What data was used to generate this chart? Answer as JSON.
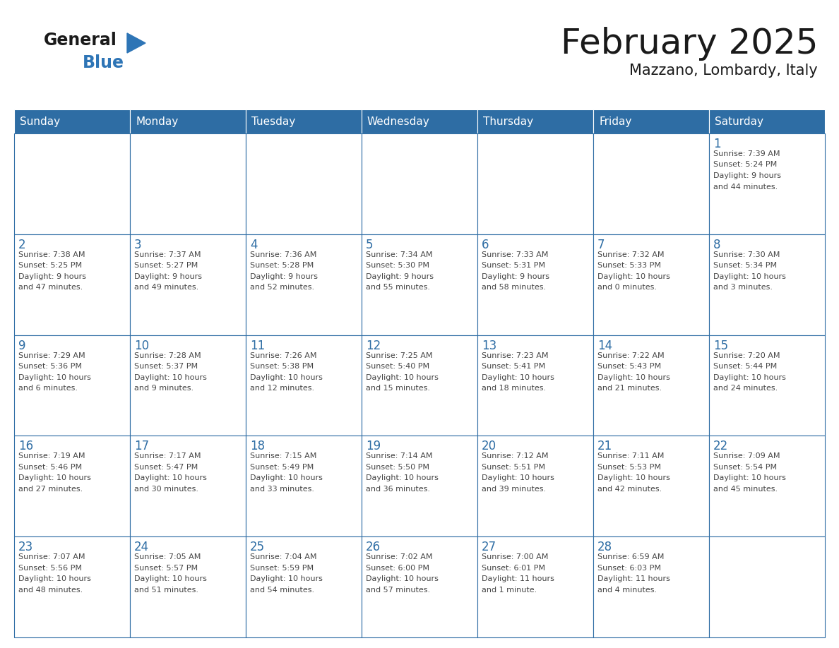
{
  "title": "February 2025",
  "subtitle": "Mazzano, Lombardy, Italy",
  "days_of_week": [
    "Sunday",
    "Monday",
    "Tuesday",
    "Wednesday",
    "Thursday",
    "Friday",
    "Saturday"
  ],
  "header_bg": "#2e6da4",
  "header_text": "#ffffff",
  "cell_bg": "#ffffff",
  "border_color": "#2e6da4",
  "day_num_color": "#2e6da4",
  "text_color": "#444444",
  "logo_general_color": "#1a1a1a",
  "logo_blue_color": "#2e75b6",
  "weeks": [
    [
      {
        "day": null,
        "info": null
      },
      {
        "day": null,
        "info": null
      },
      {
        "day": null,
        "info": null
      },
      {
        "day": null,
        "info": null
      },
      {
        "day": null,
        "info": null
      },
      {
        "day": null,
        "info": null
      },
      {
        "day": 1,
        "info": "Sunrise: 7:39 AM\nSunset: 5:24 PM\nDaylight: 9 hours\nand 44 minutes."
      }
    ],
    [
      {
        "day": 2,
        "info": "Sunrise: 7:38 AM\nSunset: 5:25 PM\nDaylight: 9 hours\nand 47 minutes."
      },
      {
        "day": 3,
        "info": "Sunrise: 7:37 AM\nSunset: 5:27 PM\nDaylight: 9 hours\nand 49 minutes."
      },
      {
        "day": 4,
        "info": "Sunrise: 7:36 AM\nSunset: 5:28 PM\nDaylight: 9 hours\nand 52 minutes."
      },
      {
        "day": 5,
        "info": "Sunrise: 7:34 AM\nSunset: 5:30 PM\nDaylight: 9 hours\nand 55 minutes."
      },
      {
        "day": 6,
        "info": "Sunrise: 7:33 AM\nSunset: 5:31 PM\nDaylight: 9 hours\nand 58 minutes."
      },
      {
        "day": 7,
        "info": "Sunrise: 7:32 AM\nSunset: 5:33 PM\nDaylight: 10 hours\nand 0 minutes."
      },
      {
        "day": 8,
        "info": "Sunrise: 7:30 AM\nSunset: 5:34 PM\nDaylight: 10 hours\nand 3 minutes."
      }
    ],
    [
      {
        "day": 9,
        "info": "Sunrise: 7:29 AM\nSunset: 5:36 PM\nDaylight: 10 hours\nand 6 minutes."
      },
      {
        "day": 10,
        "info": "Sunrise: 7:28 AM\nSunset: 5:37 PM\nDaylight: 10 hours\nand 9 minutes."
      },
      {
        "day": 11,
        "info": "Sunrise: 7:26 AM\nSunset: 5:38 PM\nDaylight: 10 hours\nand 12 minutes."
      },
      {
        "day": 12,
        "info": "Sunrise: 7:25 AM\nSunset: 5:40 PM\nDaylight: 10 hours\nand 15 minutes."
      },
      {
        "day": 13,
        "info": "Sunrise: 7:23 AM\nSunset: 5:41 PM\nDaylight: 10 hours\nand 18 minutes."
      },
      {
        "day": 14,
        "info": "Sunrise: 7:22 AM\nSunset: 5:43 PM\nDaylight: 10 hours\nand 21 minutes."
      },
      {
        "day": 15,
        "info": "Sunrise: 7:20 AM\nSunset: 5:44 PM\nDaylight: 10 hours\nand 24 minutes."
      }
    ],
    [
      {
        "day": 16,
        "info": "Sunrise: 7:19 AM\nSunset: 5:46 PM\nDaylight: 10 hours\nand 27 minutes."
      },
      {
        "day": 17,
        "info": "Sunrise: 7:17 AM\nSunset: 5:47 PM\nDaylight: 10 hours\nand 30 minutes."
      },
      {
        "day": 18,
        "info": "Sunrise: 7:15 AM\nSunset: 5:49 PM\nDaylight: 10 hours\nand 33 minutes."
      },
      {
        "day": 19,
        "info": "Sunrise: 7:14 AM\nSunset: 5:50 PM\nDaylight: 10 hours\nand 36 minutes."
      },
      {
        "day": 20,
        "info": "Sunrise: 7:12 AM\nSunset: 5:51 PM\nDaylight: 10 hours\nand 39 minutes."
      },
      {
        "day": 21,
        "info": "Sunrise: 7:11 AM\nSunset: 5:53 PM\nDaylight: 10 hours\nand 42 minutes."
      },
      {
        "day": 22,
        "info": "Sunrise: 7:09 AM\nSunset: 5:54 PM\nDaylight: 10 hours\nand 45 minutes."
      }
    ],
    [
      {
        "day": 23,
        "info": "Sunrise: 7:07 AM\nSunset: 5:56 PM\nDaylight: 10 hours\nand 48 minutes."
      },
      {
        "day": 24,
        "info": "Sunrise: 7:05 AM\nSunset: 5:57 PM\nDaylight: 10 hours\nand 51 minutes."
      },
      {
        "day": 25,
        "info": "Sunrise: 7:04 AM\nSunset: 5:59 PM\nDaylight: 10 hours\nand 54 minutes."
      },
      {
        "day": 26,
        "info": "Sunrise: 7:02 AM\nSunset: 6:00 PM\nDaylight: 10 hours\nand 57 minutes."
      },
      {
        "day": 27,
        "info": "Sunrise: 7:00 AM\nSunset: 6:01 PM\nDaylight: 11 hours\nand 1 minute."
      },
      {
        "day": 28,
        "info": "Sunrise: 6:59 AM\nSunset: 6:03 PM\nDaylight: 11 hours\nand 4 minutes."
      },
      {
        "day": null,
        "info": null
      }
    ]
  ]
}
